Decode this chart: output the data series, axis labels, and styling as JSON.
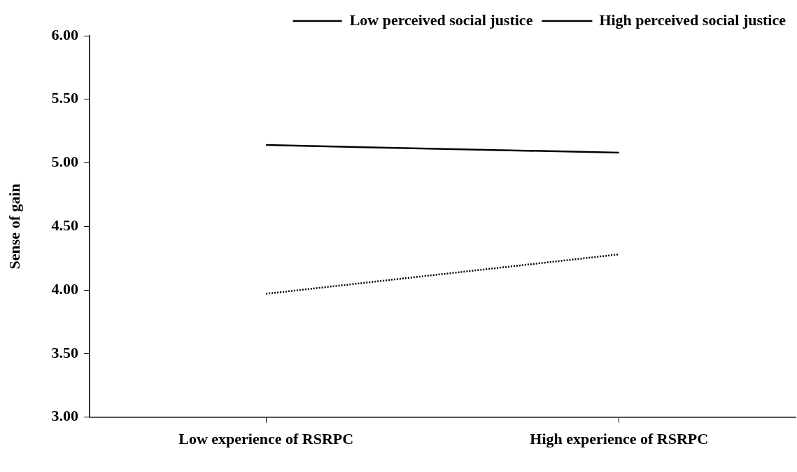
{
  "chart_data": {
    "type": "line",
    "ylabel": "Sense of gain",
    "categories": [
      "Low experience of RSRPC",
      "High experience of RSRPC"
    ],
    "series": [
      {
        "name": "Low perceived social justice",
        "color": "#000000",
        "values": [
          3.97,
          4.28
        ],
        "line_style": "dotted"
      },
      {
        "name": "High perceived social justice",
        "color": "#000000",
        "values": [
          5.14,
          5.08
        ],
        "line_style": "solid"
      }
    ],
    "ylim": [
      3,
      6
    ],
    "yticks": [
      {
        "value": 3,
        "label": "3.00"
      },
      {
        "value": 3.5,
        "label": "3.50"
      },
      {
        "value": 4,
        "label": "4.00"
      },
      {
        "value": 4.5,
        "label": "4.50"
      },
      {
        "value": 5,
        "label": "5.00"
      },
      {
        "value": 5.5,
        "label": "5.50"
      },
      {
        "value": 6,
        "label": "6.00"
      }
    ],
    "grid": false,
    "legend": "top right",
    "marker": "none"
  }
}
